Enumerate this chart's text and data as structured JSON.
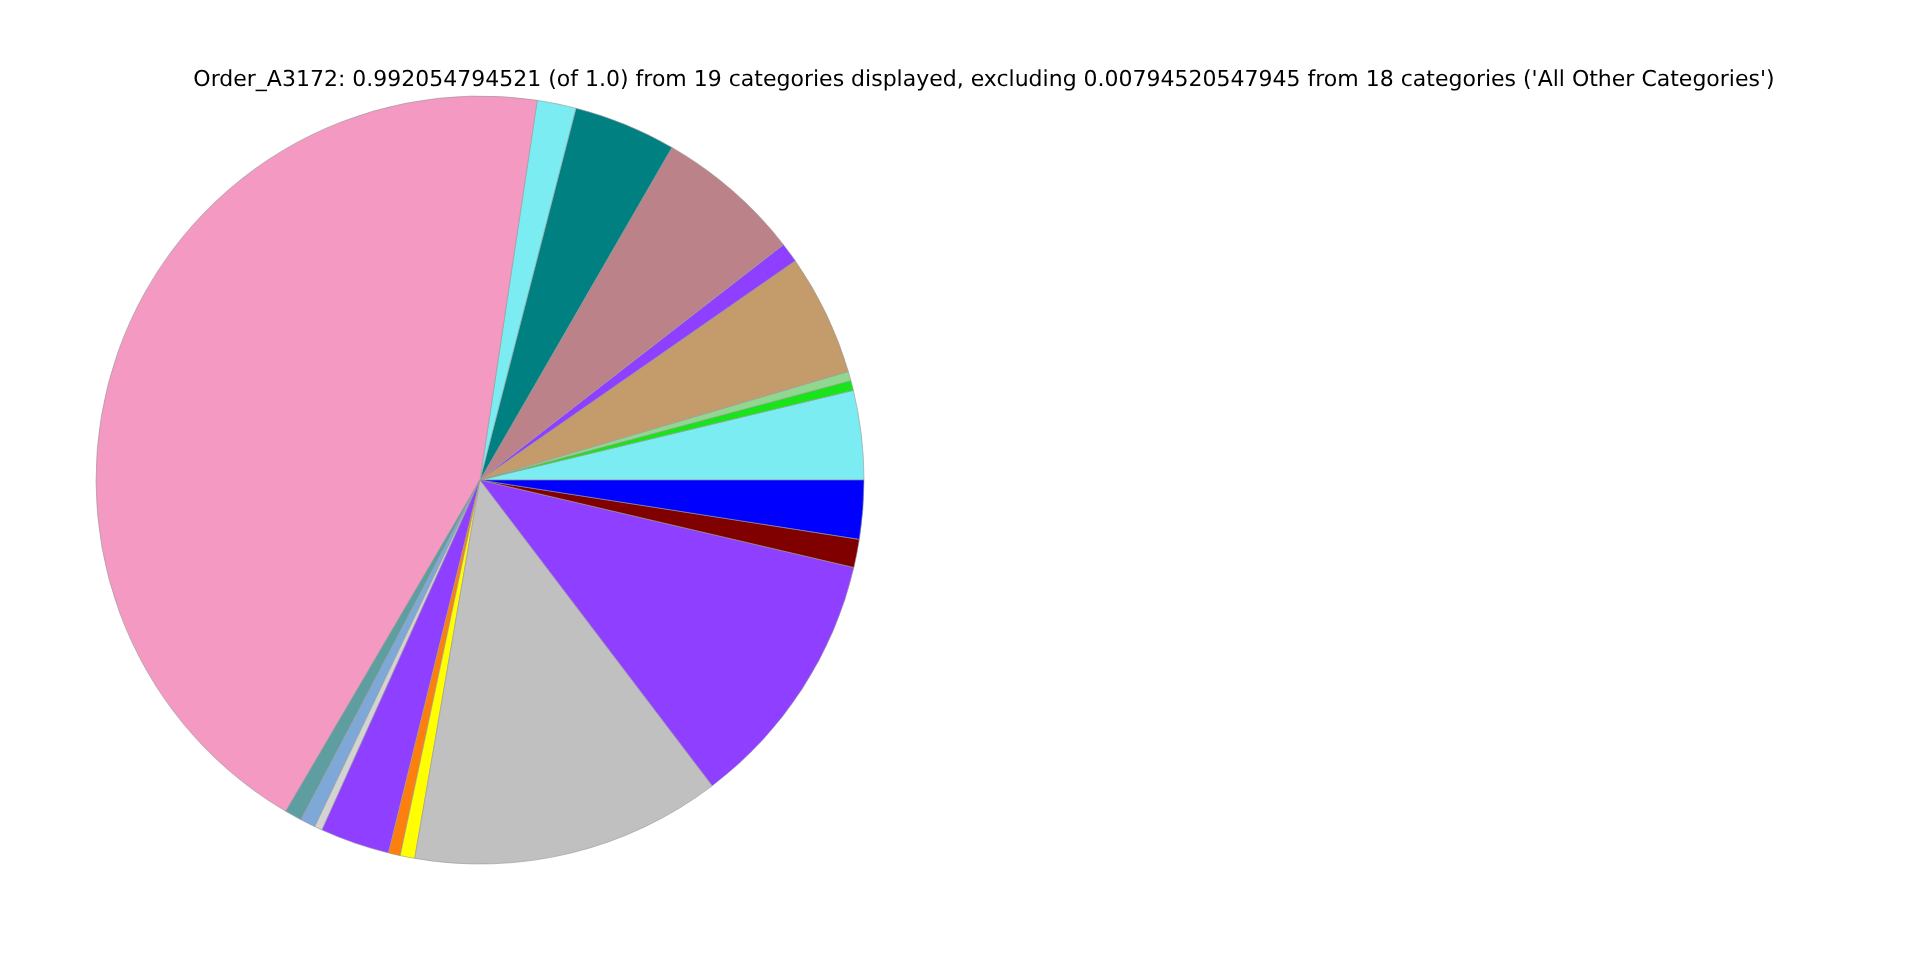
{
  "chart_data": {
    "type": "pie",
    "title": "Order_A3172: 0.992054794521 (of 1.0) from 19 categories displayed, excluding 0.00794520547945 from 18 categories ('All Other Categories')",
    "categories": [
      null,
      null,
      null,
      null,
      null,
      null,
      null,
      null,
      null,
      null,
      null,
      null,
      null,
      null,
      null,
      null,
      null,
      null,
      null
    ],
    "values": [
      3.75,
      0.42,
      0.39,
      5.11,
      0.83,
      6.17,
      4.31,
      1.64,
      43.94,
      0.72,
      0.64,
      0.33,
      2.92,
      0.5,
      0.61,
      13.06,
      11.0,
      1.19,
      2.47
    ],
    "colors": [
      "#7aecf2",
      "#19e319",
      "#90d890",
      "#c49c6b",
      "#8f3fff",
      "#bc8289",
      "#008080",
      "#7aecf2",
      "#f49ac2",
      "#5f9ea0",
      "#7ea8d8",
      "#d3d3d3",
      "#8f3fff",
      "#ff7f0e",
      "#ffff00",
      "#c0c0c0",
      "#8f3fff",
      "#800000",
      "#0000ff"
    ],
    "legend": false
  }
}
